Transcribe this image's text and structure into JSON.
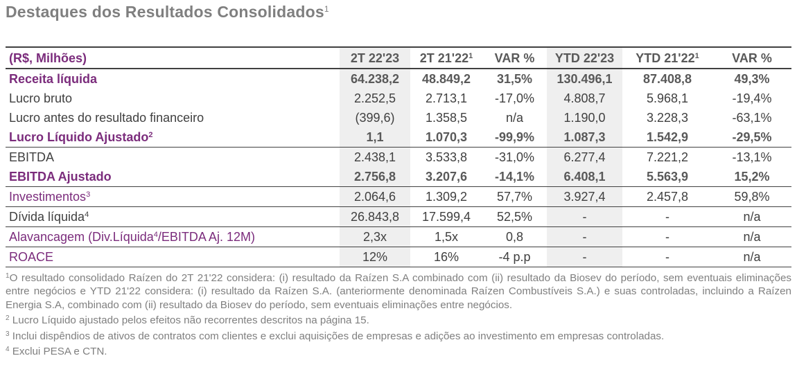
{
  "title": {
    "text": "Destaques dos Resultados Consolidados",
    "sup": "1"
  },
  "table": {
    "header": {
      "label": "(R$, Milhões)",
      "cols": [
        {
          "text": "2T 22'23",
          "sup": ""
        },
        {
          "text": "2T 21'22",
          "sup": "1"
        },
        {
          "text": "VAR %",
          "sup": ""
        },
        {
          "text": "YTD 22'23",
          "sup": ""
        },
        {
          "text": "YTD 21'22",
          "sup": "1"
        },
        {
          "text": "VAR %",
          "sup": ""
        }
      ]
    },
    "rows": [
      {
        "label": "Receita líquida",
        "sup": "",
        "values": [
          "64.238,2",
          "48.849,2",
          "31,5%",
          "130.496,1",
          "87.408,8",
          "49,3%"
        ]
      },
      {
        "label": "Lucro bruto",
        "sup": "",
        "values": [
          "2.252,5",
          "2.713,1",
          "-17,0%",
          "4.808,7",
          "5.968,1",
          "-19,4%"
        ]
      },
      {
        "label": "Lucro antes do resultado financeiro",
        "sup": "",
        "values": [
          "(399,6)",
          "1.358,5",
          "n/a",
          "1.190,0",
          "3.228,3",
          "-63,1%"
        ]
      },
      {
        "label": "Lucro Líquido Ajustado",
        "sup": "2",
        "values": [
          "1,1",
          "1.070,3",
          "-99,9%",
          "1.087,3",
          "1.542,9",
          "-29,5%"
        ]
      },
      {
        "label": "EBITDA",
        "sup": "",
        "values": [
          "2.438,1",
          "3.533,8",
          "-31,0%",
          "6.277,4",
          "7.221,2",
          "-13,1%"
        ]
      },
      {
        "label": "EBITDA Ajustado",
        "sup": "",
        "values": [
          "2.756,8",
          "3.207,6",
          "-14,1%",
          "6.408,1",
          "5.563,9",
          "15,2%"
        ]
      },
      {
        "label": "Investimentos",
        "sup": "3",
        "values": [
          "2.064,6",
          "1.309,2",
          "57,7%",
          "3.927,4",
          "2.457,8",
          "59,8%"
        ]
      },
      {
        "label": "Dívida líquida",
        "sup": "4",
        "values": [
          "26.843,8",
          "17.599,4",
          "52,5%",
          "-",
          "-",
          "n/a"
        ]
      },
      {
        "label_pre": "Alavancagem (Div.Líquida",
        "sup": "4",
        "label_post": "/EBITDA Aj. 12M)",
        "values": [
          "2,3x",
          "1,5x",
          "0,8",
          "-",
          "-",
          "n/a"
        ]
      },
      {
        "label": "ROACE",
        "sup": "",
        "values": [
          "12%",
          "16%",
          "-4 p.p",
          "-",
          "-",
          "n/a"
        ]
      }
    ]
  },
  "footnotes": [
    {
      "num": "1",
      "text": "O resultado consolidado Raízen do 2T 21'22 considera: (i) resultado da Raízen S.A combinado com (ii) resultado da Biosev do período, sem eventuais eliminações entre negócios e YTD 21'22 considera: (i) resultado da Raízen S.A. (anteriormente denominada Raízen Combustíveis S.A.) e suas controladas, incluindo a Raízen Energia S.A, combinado com (ii) resultado da Biosev do período, sem eventuais eliminações entre negócios."
    },
    {
      "num": "2",
      "text": "Lucro Líquido ajustado pelos efeitos não recorrentes descritos na página 15."
    },
    {
      "num": "3",
      "text": "Inclui dispêndios de ativos de contratos com clientes e exclui aquisições de empresas e adições ao investimento em empresas controladas."
    },
    {
      "num": "4",
      "text": "Exclui PESA e CTN."
    }
  ]
}
